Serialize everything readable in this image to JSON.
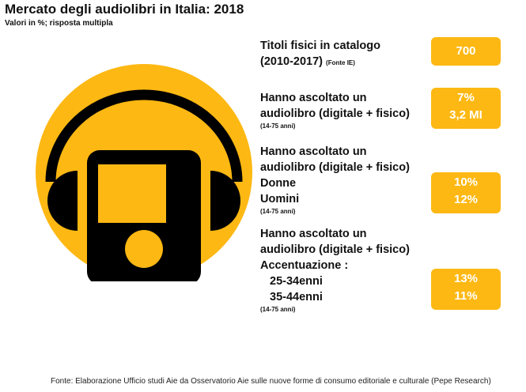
{
  "header": {
    "title": "Mercato degli audiolibri in Italia: 2018",
    "subtitle": "Valori in %; risposta multipla"
  },
  "illustration": {
    "icon": "audiobook-player-headphones-icon",
    "circle_color": "#FDB813",
    "ink_color": "#000000"
  },
  "colors": {
    "badge": "#FDB813",
    "badge_text": "#FFFFFF"
  },
  "blocks": [
    {
      "line1": "Titoli fisici in catalogo",
      "line2": "(2010-2017)",
      "source": "(Fonte IE)",
      "values": [
        "700"
      ]
    },
    {
      "line1": "Hanno ascoltato un",
      "line2": "audiolibro (digitale + fisico)",
      "note": "(14-75 anni)",
      "values": [
        "7%",
        "3,2 MI"
      ]
    },
    {
      "line1": "Hanno ascoltato un",
      "line2": "audiolibro (digitale + fisico)",
      "rows": [
        "Donne",
        "Uomini"
      ],
      "note": "(14-75 anni)",
      "values": [
        "10%",
        "12%"
      ]
    },
    {
      "line1": "Hanno ascoltato un",
      "line2": "audiolibro (digitale + fisico)",
      "line3": "Accentuazione :",
      "rows": [
        "25-34enni",
        "35-44enni"
      ],
      "note": "(14-75 anni)",
      "values": [
        "13%",
        "11%"
      ]
    }
  ],
  "footer": "Fonte:  Elaborazione Ufficio studi Aie da Osservatorio Aie sulle nuove forme di consumo editoriale e culturale (Pepe Research)"
}
